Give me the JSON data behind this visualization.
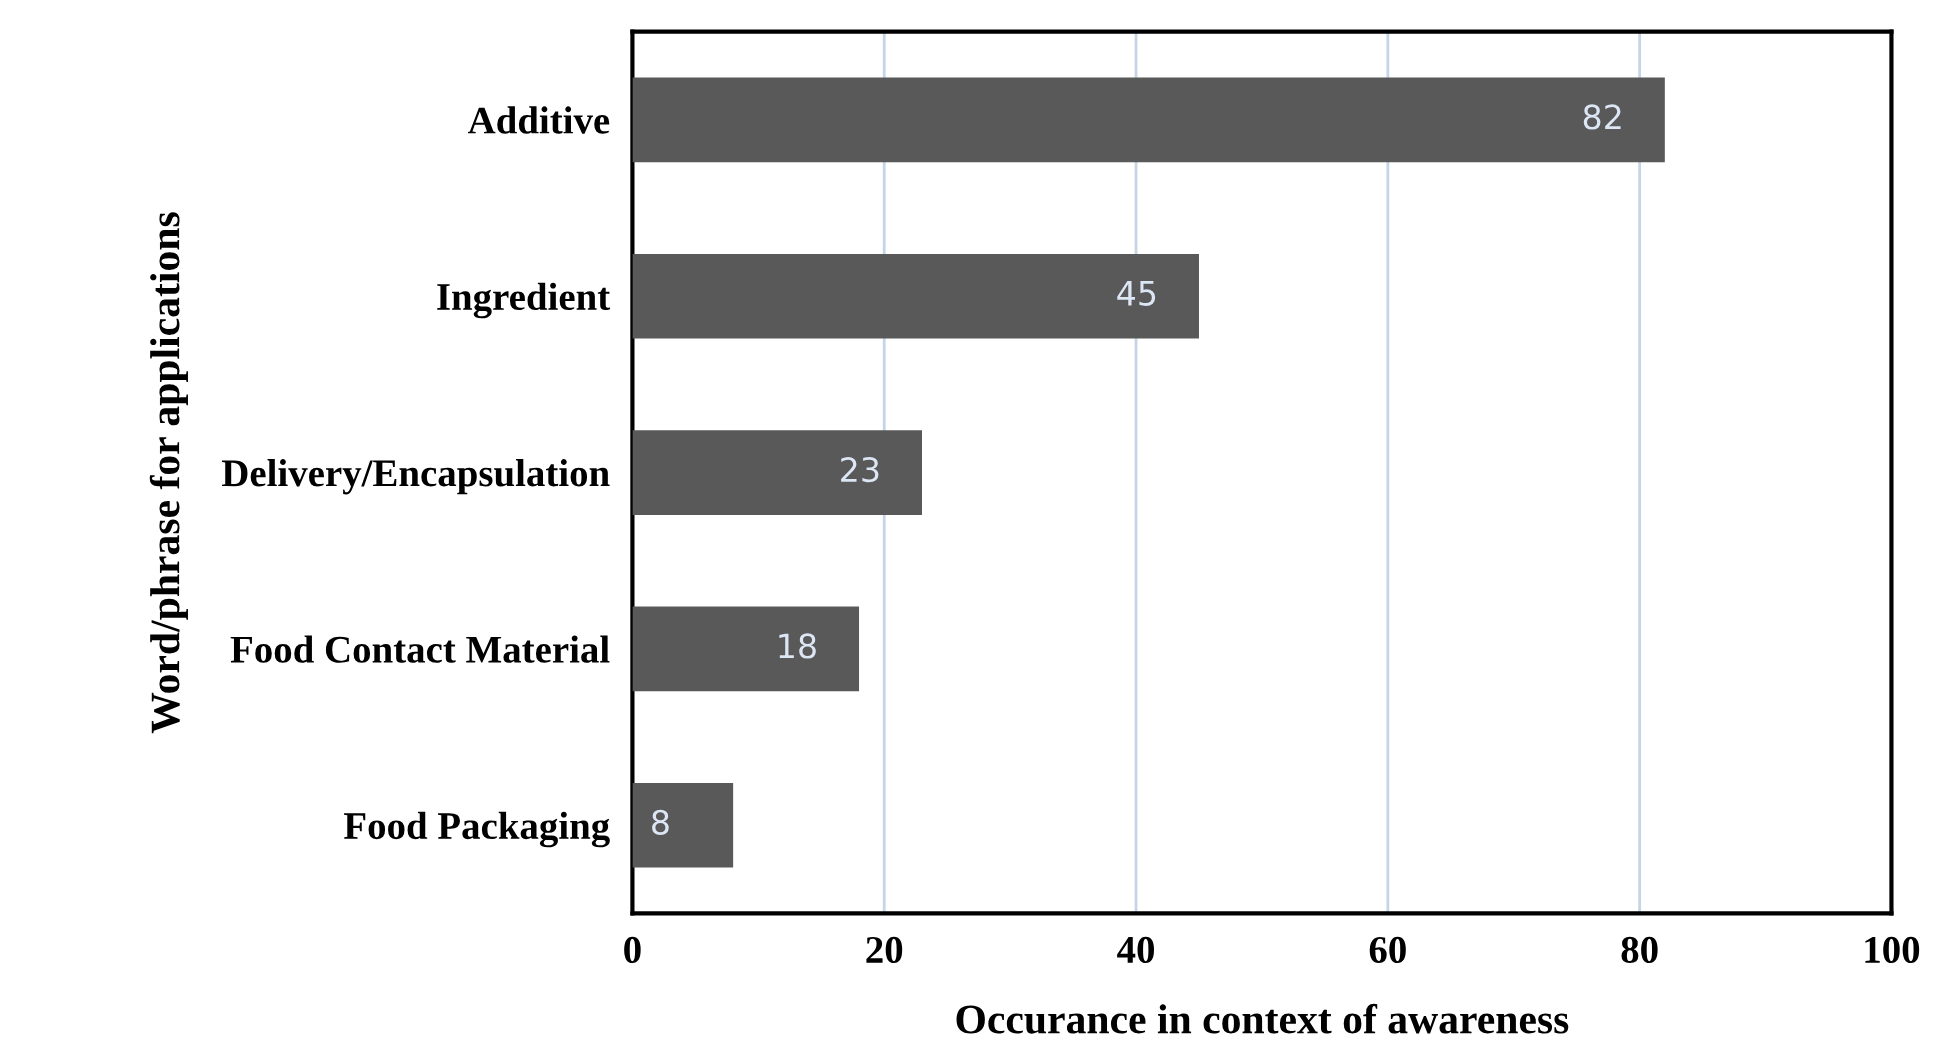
{
  "chart_data": {
    "type": "bar",
    "orientation": "horizontal",
    "categories": [
      "Additive",
      "Ingredient",
      "Delivery/Encapsulation",
      "Food Contact Material",
      "Food Packaging"
    ],
    "values": [
      82,
      45,
      23,
      18,
      8
    ],
    "color": "#595959",
    "xlim": [
      0,
      100
    ],
    "xticks": [
      0,
      20,
      40,
      60,
      80,
      100
    ],
    "xlabel": "Occurance in context of awareness",
    "ylabel": "Word/phrase for applications",
    "grid": "x",
    "data_labels": true,
    "legend": false
  }
}
